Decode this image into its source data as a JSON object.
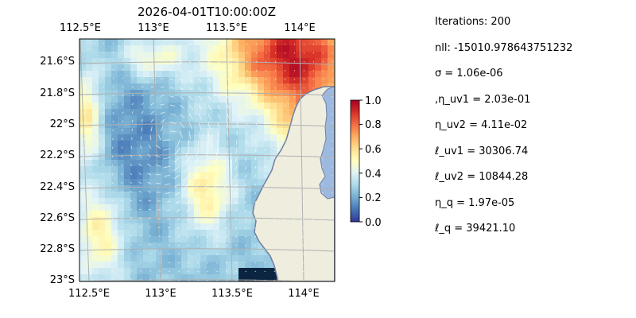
{
  "chart_data": {
    "type": "heatmap",
    "title": "2026-04-01T10:00:00Z",
    "x_ticks": [
      "112.5°E",
      "113°E",
      "113.5°E",
      "114°E"
    ],
    "x_tick_values": [
      112.5,
      113.0,
      113.5,
      114.0
    ],
    "y_ticks": [
      "21.6°S",
      "21.8°S",
      "22°S",
      "22.2°S",
      "22.4°S",
      "22.6°S",
      "22.8°S",
      "23°S"
    ],
    "y_tick_values": [
      -21.6,
      -21.8,
      -22.0,
      -22.2,
      -22.4,
      -22.6,
      -22.8,
      -23.0
    ],
    "xlim": [
      112.5,
      114.2
    ],
    "ylim": [
      -23.0,
      -21.5
    ],
    "grid": true,
    "colormap": "RdYlBu_r",
    "colorbar": {
      "ticks": [
        "0.0",
        "0.2",
        "0.4",
        "0.6",
        "0.8",
        "1.0"
      ],
      "range": [
        0.0,
        1.0
      ]
    },
    "colors": {
      "ocean": "#9db9e0",
      "land": "#efedde",
      "coastline": "#6f7ea0",
      "grid": "#b0b0b0",
      "arrow": "#ffffff"
    },
    "overlay": "current vector arrows (white)"
  },
  "stats": [
    "Iterations: 200",
    "nll: -15010.978643751232",
    "σ = 1.06e-06",
    ",η_uv1 = 2.03e-01",
    "η_uv2 = 4.11e-02",
    "ℓ_uv1 = 30306.74",
    "ℓ_uv2 = 10844.28",
    "η_q = 1.97e-05",
    "ℓ_q = 39421.10"
  ]
}
